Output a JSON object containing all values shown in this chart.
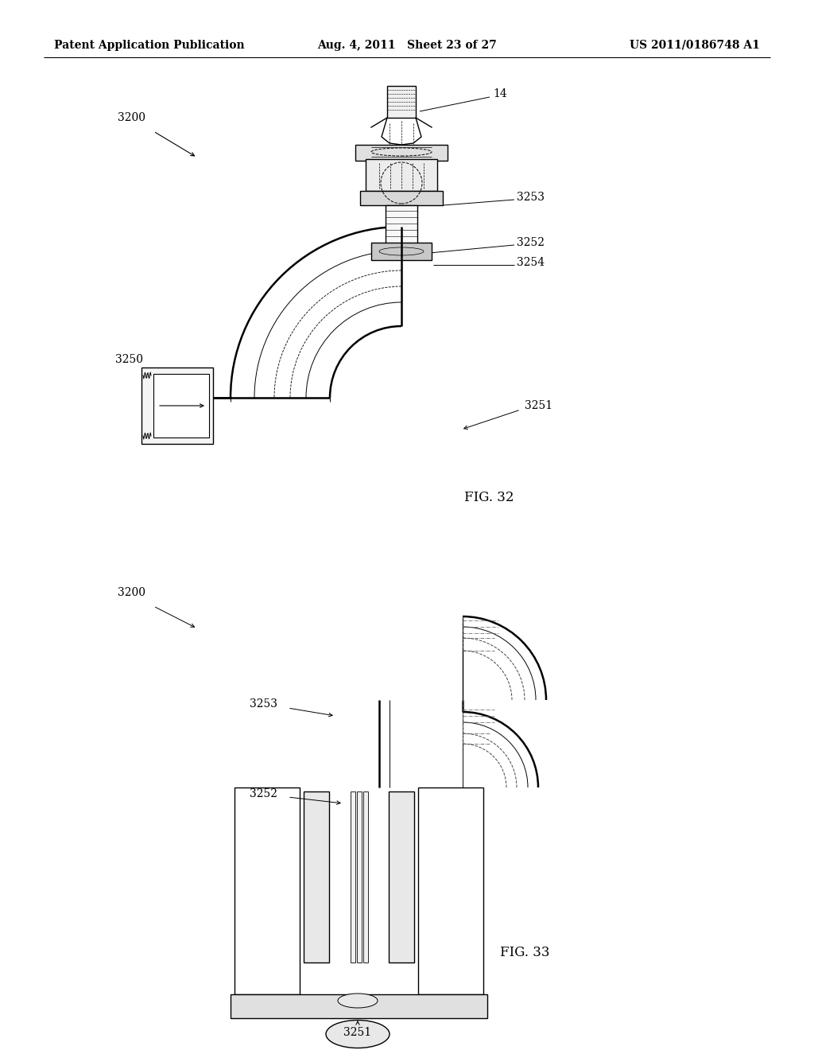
{
  "header_left": "Patent Application Publication",
  "header_mid": "Aug. 4, 2011   Sheet 23 of 27",
  "header_right": "US 2011/0186748 A1",
  "fig32_label": "FIG. 32",
  "fig33_label": "FIG. 33",
  "bg_color": "#ffffff",
  "line_color": "#000000",
  "gray_light": "#d8d8d8",
  "gray_mid": "#b0b0b0",
  "header_font_size": 10,
  "label_font_size": 10,
  "fig_label_font_size": 12,
  "labels": {
    "fig32_3200": "3200",
    "fig32_14": "14",
    "fig32_3253": "3253",
    "fig32_3252": "3252",
    "fig32_3254": "3254",
    "fig32_3250": "3250",
    "fig32_3251": "3251",
    "fig33_3200": "3200",
    "fig33_3253": "3253",
    "fig33_3252": "3252",
    "fig33_3251": "3251"
  }
}
